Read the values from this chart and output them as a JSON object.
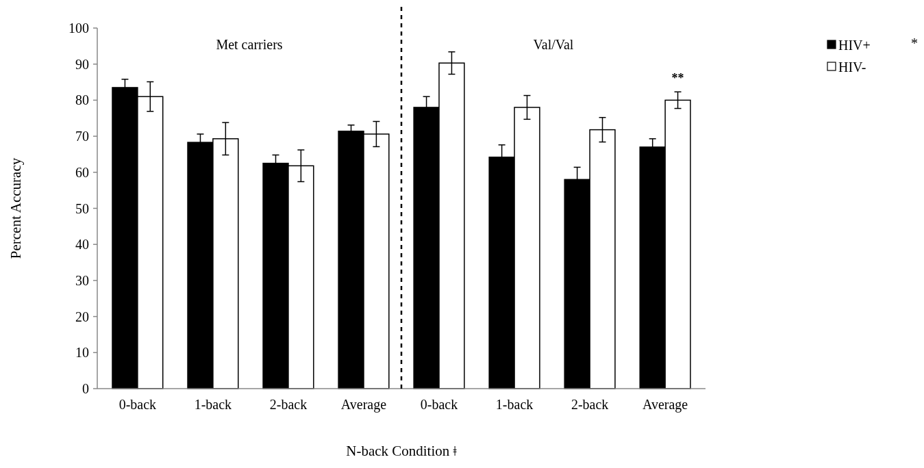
{
  "chart_data": {
    "type": "bar",
    "xlabel": "N-back Condition ǂ",
    "ylabel": "Percent Accuracy",
    "categories": [
      "0-back",
      "1-back",
      "2-back",
      "Average",
      "0-back",
      "1-back",
      "2-back",
      "Average"
    ],
    "series": [
      {
        "name": "HIV+",
        "color": "#000000",
        "values": [
          83.5,
          68.3,
          62.5,
          71.4,
          78,
          64.2,
          58,
          67
        ],
        "errors": [
          2.3,
          2.3,
          2.3,
          1.7,
          3,
          3.4,
          3.4,
          2.3
        ]
      },
      {
        "name": "HIV-",
        "color": "#ffffff",
        "values": [
          81,
          69.3,
          61.8,
          70.6,
          90.3,
          78,
          71.8,
          80
        ],
        "errors": [
          4.1,
          4.5,
          4.4,
          3.5,
          3.1,
          3.3,
          3.4,
          2.3
        ]
      }
    ],
    "ylim": [
      0,
      100
    ],
    "yticks": [
      0,
      10,
      20,
      30,
      40,
      50,
      60,
      70,
      80,
      90,
      100
    ],
    "grid": false,
    "legend": "top right",
    "annotations": [
      "Met carriers",
      "Val/Val",
      "**",
      "*"
    ]
  }
}
